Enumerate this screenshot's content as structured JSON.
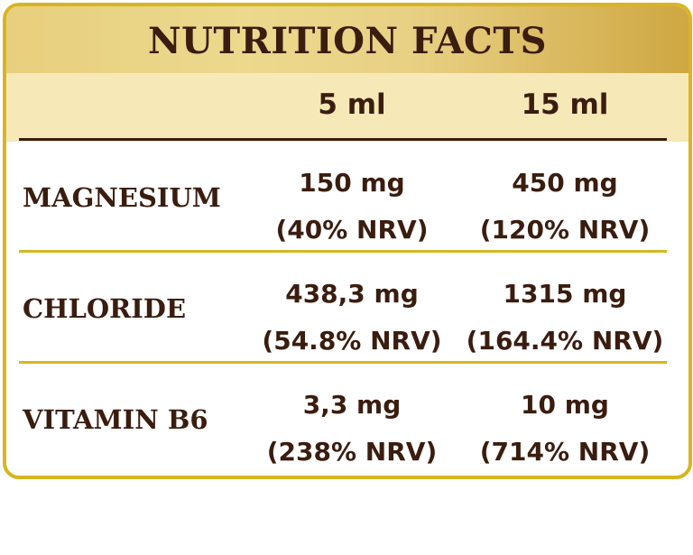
{
  "title": "NUTRITION FACTS",
  "columns": [
    "5 ml",
    "15 ml"
  ],
  "rows": [
    {
      "name": "MAGNESIUM",
      "dose_5ml": "150 mg",
      "nrv_5ml": "(40% NRV)",
      "dose_15ml": "450 mg",
      "nrv_15ml": "(120% NRV)"
    },
    {
      "name": "CHLORIDE",
      "dose_5ml": "438,3 mg",
      "nrv_5ml": "(54.8% NRV)",
      "dose_15ml": "1315 mg",
      "nrv_15ml": "(164.4% NRV)"
    },
    {
      "name": "VITAMIN B6",
      "dose_5ml": "3,3 mg",
      "nrv_5ml": "(238% NRV)",
      "dose_15ml": "10 mg",
      "nrv_15ml": "(714% NRV)"
    }
  ],
  "colors": {
    "border": "#d8b521",
    "header_band": "#f7e8b8",
    "title_gradient_start": "#e7cf7d",
    "title_gradient_end": "#cfa742",
    "text": "#3a1d0f"
  }
}
